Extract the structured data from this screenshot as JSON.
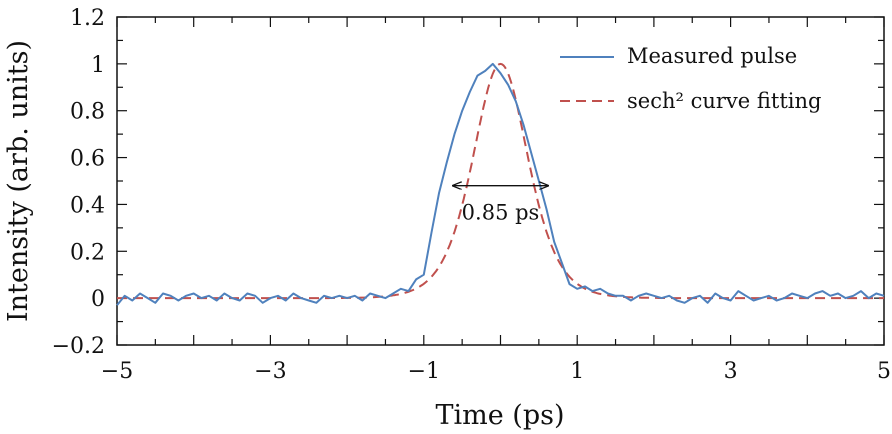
{
  "chart_data": {
    "type": "line",
    "xlabel": "Time (ps)",
    "ylabel": "Intensity (arb. units)",
    "xlim": [
      -5,
      5
    ],
    "ylim": [
      -0.2,
      1.2
    ],
    "xticks": [
      {
        "v": -5,
        "label": "−5"
      },
      {
        "v": -3,
        "label": "−3"
      },
      {
        "v": -1,
        "label": "−1"
      },
      {
        "v": 1,
        "label": "1"
      },
      {
        "v": 3,
        "label": "3"
      },
      {
        "v": 5,
        "label": "5"
      }
    ],
    "yticks": [
      {
        "v": -0.2,
        "label": "−0.2"
      },
      {
        "v": 0,
        "label": "0"
      },
      {
        "v": 0.2,
        "label": "0.2"
      },
      {
        "v": 0.4,
        "label": "0.4"
      },
      {
        "v": 0.6,
        "label": "0.6"
      },
      {
        "v": 0.8,
        "label": "0.8"
      },
      {
        "v": 1,
        "label": "1"
      },
      {
        "v": 1.2,
        "label": "1.2"
      }
    ],
    "grid": false,
    "legend_position": "top-right",
    "series": [
      {
        "name": "Measured pulse",
        "color": "#4f81bd",
        "style": "solid",
        "x": [
          -5.0,
          -4.9,
          -4.8,
          -4.7,
          -4.6,
          -4.5,
          -4.4,
          -4.3,
          -4.2,
          -4.1,
          -4.0,
          -3.9,
          -3.8,
          -3.7,
          -3.6,
          -3.5,
          -3.4,
          -3.3,
          -3.2,
          -3.1,
          -3.0,
          -2.9,
          -2.8,
          -2.7,
          -2.6,
          -2.5,
          -2.4,
          -2.3,
          -2.2,
          -2.1,
          -2.0,
          -1.9,
          -1.8,
          -1.7,
          -1.6,
          -1.5,
          -1.4,
          -1.3,
          -1.2,
          -1.1,
          -1.0,
          -0.9,
          -0.8,
          -0.7,
          -0.6,
          -0.5,
          -0.4,
          -0.3,
          -0.2,
          -0.1,
          0.0,
          0.1,
          0.2,
          0.3,
          0.4,
          0.5,
          0.6,
          0.7,
          0.8,
          0.9,
          1.0,
          1.1,
          1.2,
          1.3,
          1.4,
          1.5,
          1.6,
          1.7,
          1.8,
          1.9,
          2.0,
          2.1,
          2.2,
          2.3,
          2.4,
          2.5,
          2.6,
          2.7,
          2.8,
          2.9,
          3.0,
          3.1,
          3.2,
          3.3,
          3.4,
          3.5,
          3.6,
          3.7,
          3.8,
          3.9,
          4.0,
          4.1,
          4.2,
          4.3,
          4.4,
          4.5,
          4.6,
          4.7,
          4.8,
          4.9,
          5.0
        ],
        "y": [
          -0.03,
          0.01,
          -0.01,
          0.02,
          0.0,
          -0.02,
          0.02,
          0.01,
          -0.01,
          0.01,
          0.02,
          0.0,
          0.01,
          -0.01,
          0.02,
          0.0,
          -0.01,
          0.02,
          0.01,
          -0.02,
          0.0,
          0.01,
          -0.01,
          0.02,
          0.0,
          -0.01,
          -0.02,
          0.01,
          0.0,
          0.01,
          0.0,
          0.01,
          -0.01,
          0.02,
          0.01,
          0.0,
          0.02,
          0.04,
          0.03,
          0.08,
          0.1,
          0.28,
          0.45,
          0.58,
          0.7,
          0.8,
          0.88,
          0.95,
          0.97,
          1.0,
          0.96,
          0.91,
          0.84,
          0.74,
          0.62,
          0.5,
          0.38,
          0.24,
          0.15,
          0.06,
          0.04,
          0.05,
          0.03,
          0.04,
          0.02,
          0.01,
          0.01,
          -0.01,
          0.01,
          0.02,
          0.01,
          0.0,
          0.01,
          -0.01,
          -0.02,
          0.0,
          0.01,
          -0.02,
          0.02,
          0.0,
          -0.01,
          0.03,
          0.01,
          -0.01,
          0.0,
          0.01,
          -0.01,
          0.0,
          0.02,
          0.01,
          0.0,
          0.02,
          0.03,
          0.01,
          0.02,
          0.0,
          0.01,
          0.03,
          0.0,
          0.02,
          0.01
        ]
      },
      {
        "name": "sech² curve fitting",
        "color": "#c0504d",
        "style": "dashed",
        "function": "sech2",
        "fwhm_ps": 0.85,
        "peak": 1.0,
        "center_ps": 0.0
      }
    ],
    "annotations": [
      {
        "text": "0.85 ps",
        "type": "double-arrow",
        "x_from": -0.62,
        "x_to": 0.62,
        "y": 0.48
      }
    ]
  }
}
